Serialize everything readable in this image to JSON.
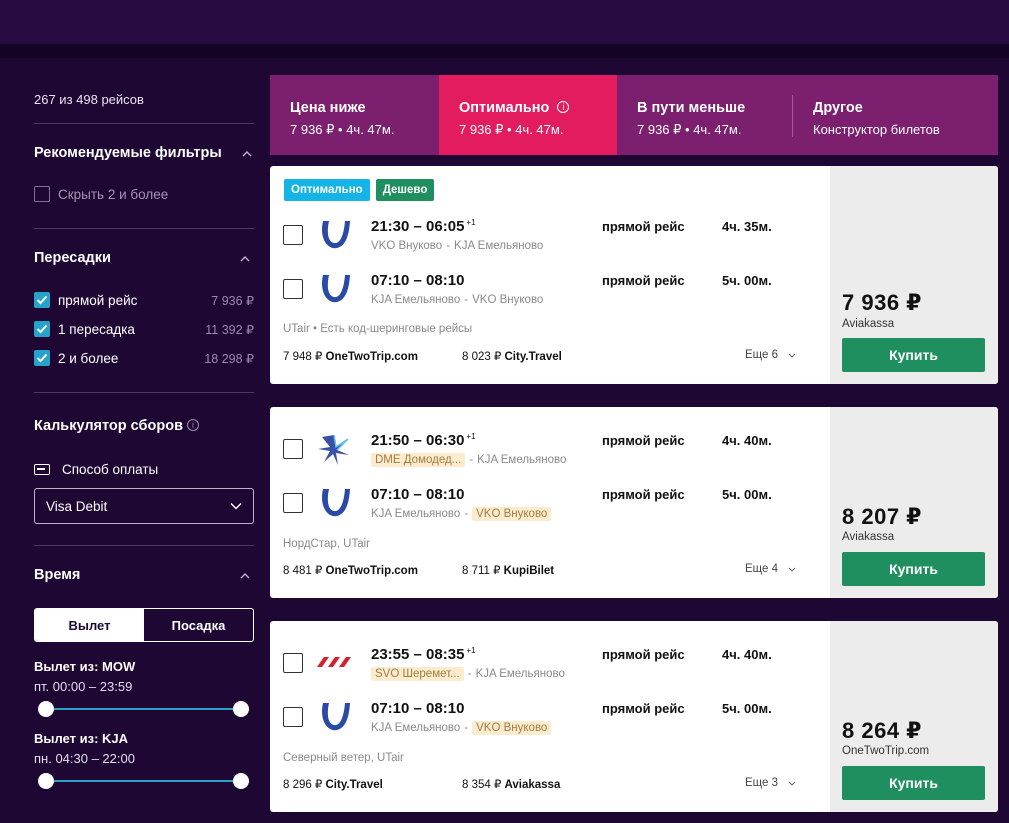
{
  "sidebar": {
    "count": "267 из 498 рейсов",
    "recommended": {
      "title": "Рекомендуемые фильтры",
      "hide_label": "Скрыть 2 и более"
    },
    "stops": {
      "title": "Пересадки",
      "items": [
        {
          "label": "прямой рейс",
          "price": "7 936 ₽"
        },
        {
          "label": "1 пересадка",
          "price": "11 392 ₽"
        },
        {
          "label": "2 и более",
          "price": "18 298 ₽"
        }
      ]
    },
    "fees": {
      "title": "Калькулятор сборов",
      "payment_label": "Способ оплаты",
      "payment_value": "Visa Debit"
    },
    "time": {
      "title": "Время",
      "toggle_depart": "Вылет",
      "toggle_land": "Посадка",
      "ranges": [
        {
          "title": "Вылет из: MOW",
          "sub": "пт. 00:00 – 23:59"
        },
        {
          "title": "Вылет из: KJA",
          "sub": "пн. 04:30 – 22:00"
        }
      ]
    }
  },
  "tabs": [
    {
      "title": "Цена ниже",
      "sub": "7 936 ₽ • 4ч. 47м."
    },
    {
      "title": "Оптимально",
      "sub": "7 936 ₽ • 4ч. 47м."
    },
    {
      "title": "В пути меньше",
      "sub": "7 936 ₽ • 4ч. 47м."
    },
    {
      "title": "Другое",
      "sub": "Конструктор билетов"
    }
  ],
  "badges": {
    "optimal": "Оптимально",
    "cheap": "Дешево"
  },
  "flights": [
    {
      "legs": [
        {
          "time": "21:30 – 06:05",
          "plus": "+1",
          "from": "VKO Внуково",
          "sep": " - ",
          "to": "KJA Емельяново",
          "type": "прямой рейс",
          "duration": "4ч. 35м."
        },
        {
          "time": "07:10 – 08:10",
          "plus": "",
          "from": "KJA Емельяново",
          "sep": " - ",
          "to": "VKO Внуково",
          "type": "прямой рейс",
          "duration": "5ч. 00м."
        }
      ],
      "carrier": "UTair • Есть код-шеринговые рейсы",
      "offer1_price": "7 948 ₽",
      "offer1_site": "OneTwoTrip.com",
      "offer2_price": "8 023 ₽",
      "offer2_site": "City.Travel",
      "more": "Еще 6",
      "price": "7 936 ₽",
      "seller": "Aviakassa",
      "buy": "Купить"
    },
    {
      "legs": [
        {
          "time": "21:50 – 06:30",
          "plus": "+1",
          "from": "DME Домодед...",
          "sep": " - ",
          "to": "KJA Емельяново",
          "type": "прямой рейс",
          "duration": "4ч. 40м."
        },
        {
          "time": "07:10 – 08:10",
          "plus": "",
          "from": "KJA Емельяново",
          "sep": " - ",
          "to": "VKO Внуково",
          "type": "прямой рейс",
          "duration": "5ч. 00м."
        }
      ],
      "carrier": "НордСтар, UTair",
      "offer1_price": "8 481 ₽",
      "offer1_site": "OneTwoTrip.com",
      "offer2_price": "8 711 ₽",
      "offer2_site": "KupiBilet",
      "more": "Еще 4",
      "price": "8 207 ₽",
      "seller": "Aviakassa",
      "buy": "Купить"
    },
    {
      "legs": [
        {
          "time": "23:55 – 08:35",
          "plus": "+1",
          "from": "SVO Шеремет...",
          "sep": " - ",
          "to": "KJA Емельяново",
          "type": "прямой рейс",
          "duration": "4ч. 40м."
        },
        {
          "time": "07:10 – 08:10",
          "plus": "",
          "from": "KJA Емельяново",
          "sep": " - ",
          "to": "VKO Внуково",
          "type": "прямой рейс",
          "duration": "5ч. 00м."
        }
      ],
      "carrier": "Северный ветер, UTair",
      "offer1_price": "8 296 ₽",
      "offer1_site": "City.Travel",
      "offer2_price": "8 354 ₽",
      "offer2_site": "Aviakassa",
      "more": "Еще 3",
      "price": "8 264 ₽",
      "seller": "OneTwoTrip.com",
      "buy": "Купить"
    }
  ],
  "colors": {
    "accent_tab": "#e31b5f",
    "tabs_bg": "#7c1f6e",
    "buy": "#1f8f5f",
    "badge_optimal": "#14b4e6",
    "badge_cheap": "#1f8f5f"
  }
}
